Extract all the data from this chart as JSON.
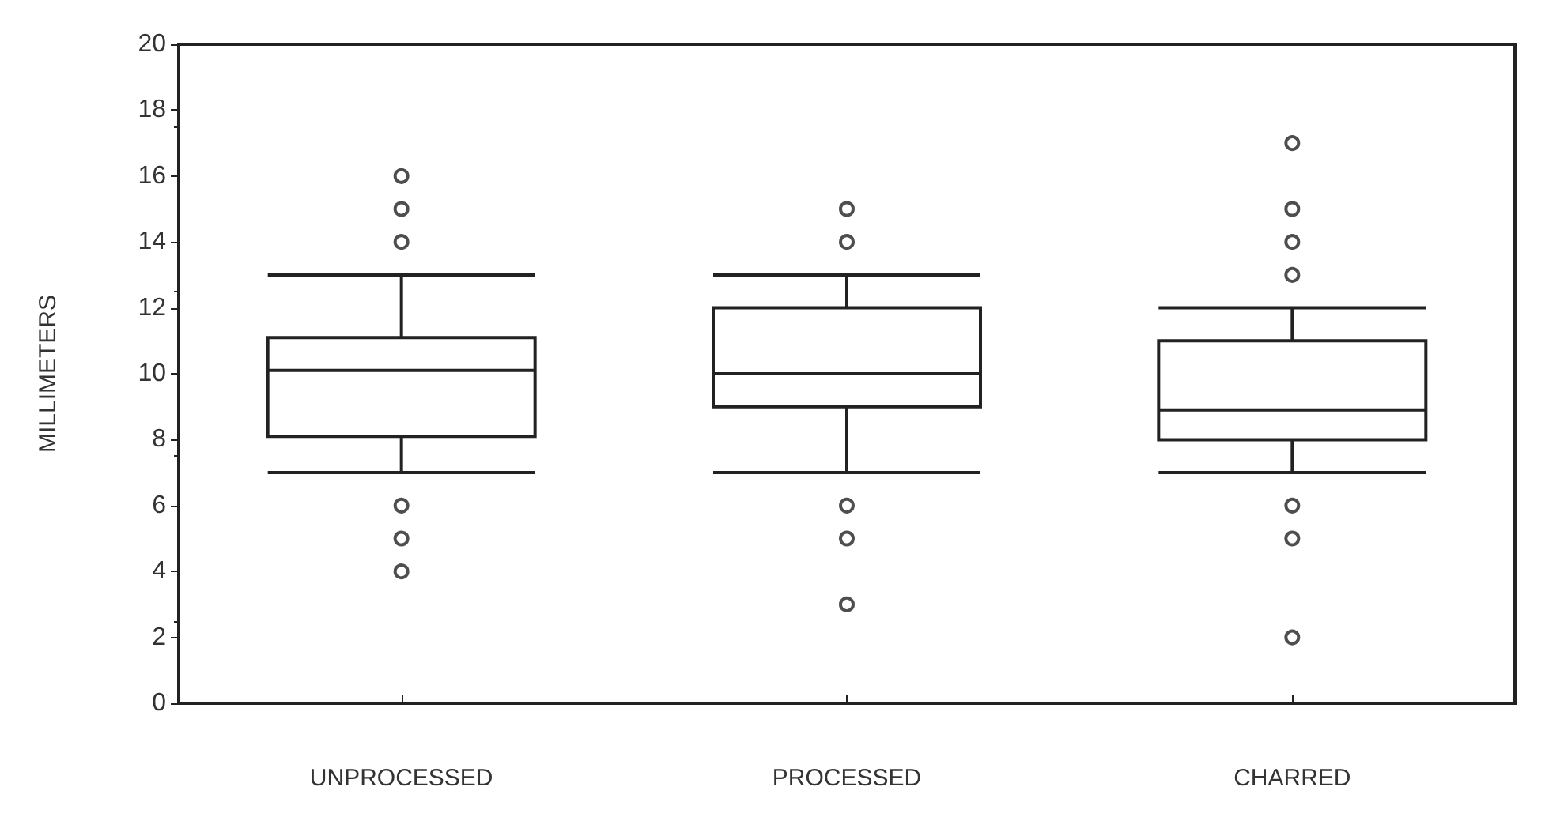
{
  "chart_data": {
    "type": "box",
    "ylabel": "MILLIMETERS",
    "categories": [
      "UNPROCESSED",
      "PROCESSED",
      "CHARRED"
    ],
    "boxes": [
      {
        "low": 7,
        "q1": 8.1,
        "median": 10.1,
        "q3": 11.1,
        "high": 13,
        "outliers": [
          16,
          15,
          14,
          6,
          5,
          4
        ]
      },
      {
        "low": 7,
        "q1": 9,
        "median": 10,
        "q3": 12,
        "high": 13,
        "outliers": [
          15,
          14,
          6,
          5,
          3
        ]
      },
      {
        "low": 7,
        "q1": 8,
        "median": 8.9,
        "q3": 11,
        "high": 12,
        "outliers": [
          17,
          15,
          14,
          13,
          6,
          5,
          2
        ]
      }
    ],
    "color": "#222222",
    "ylim": [
      0,
      20
    ],
    "yticks": [
      0,
      2,
      4,
      6,
      8,
      10,
      12,
      14,
      16,
      18,
      20
    ],
    "grid": false
  }
}
